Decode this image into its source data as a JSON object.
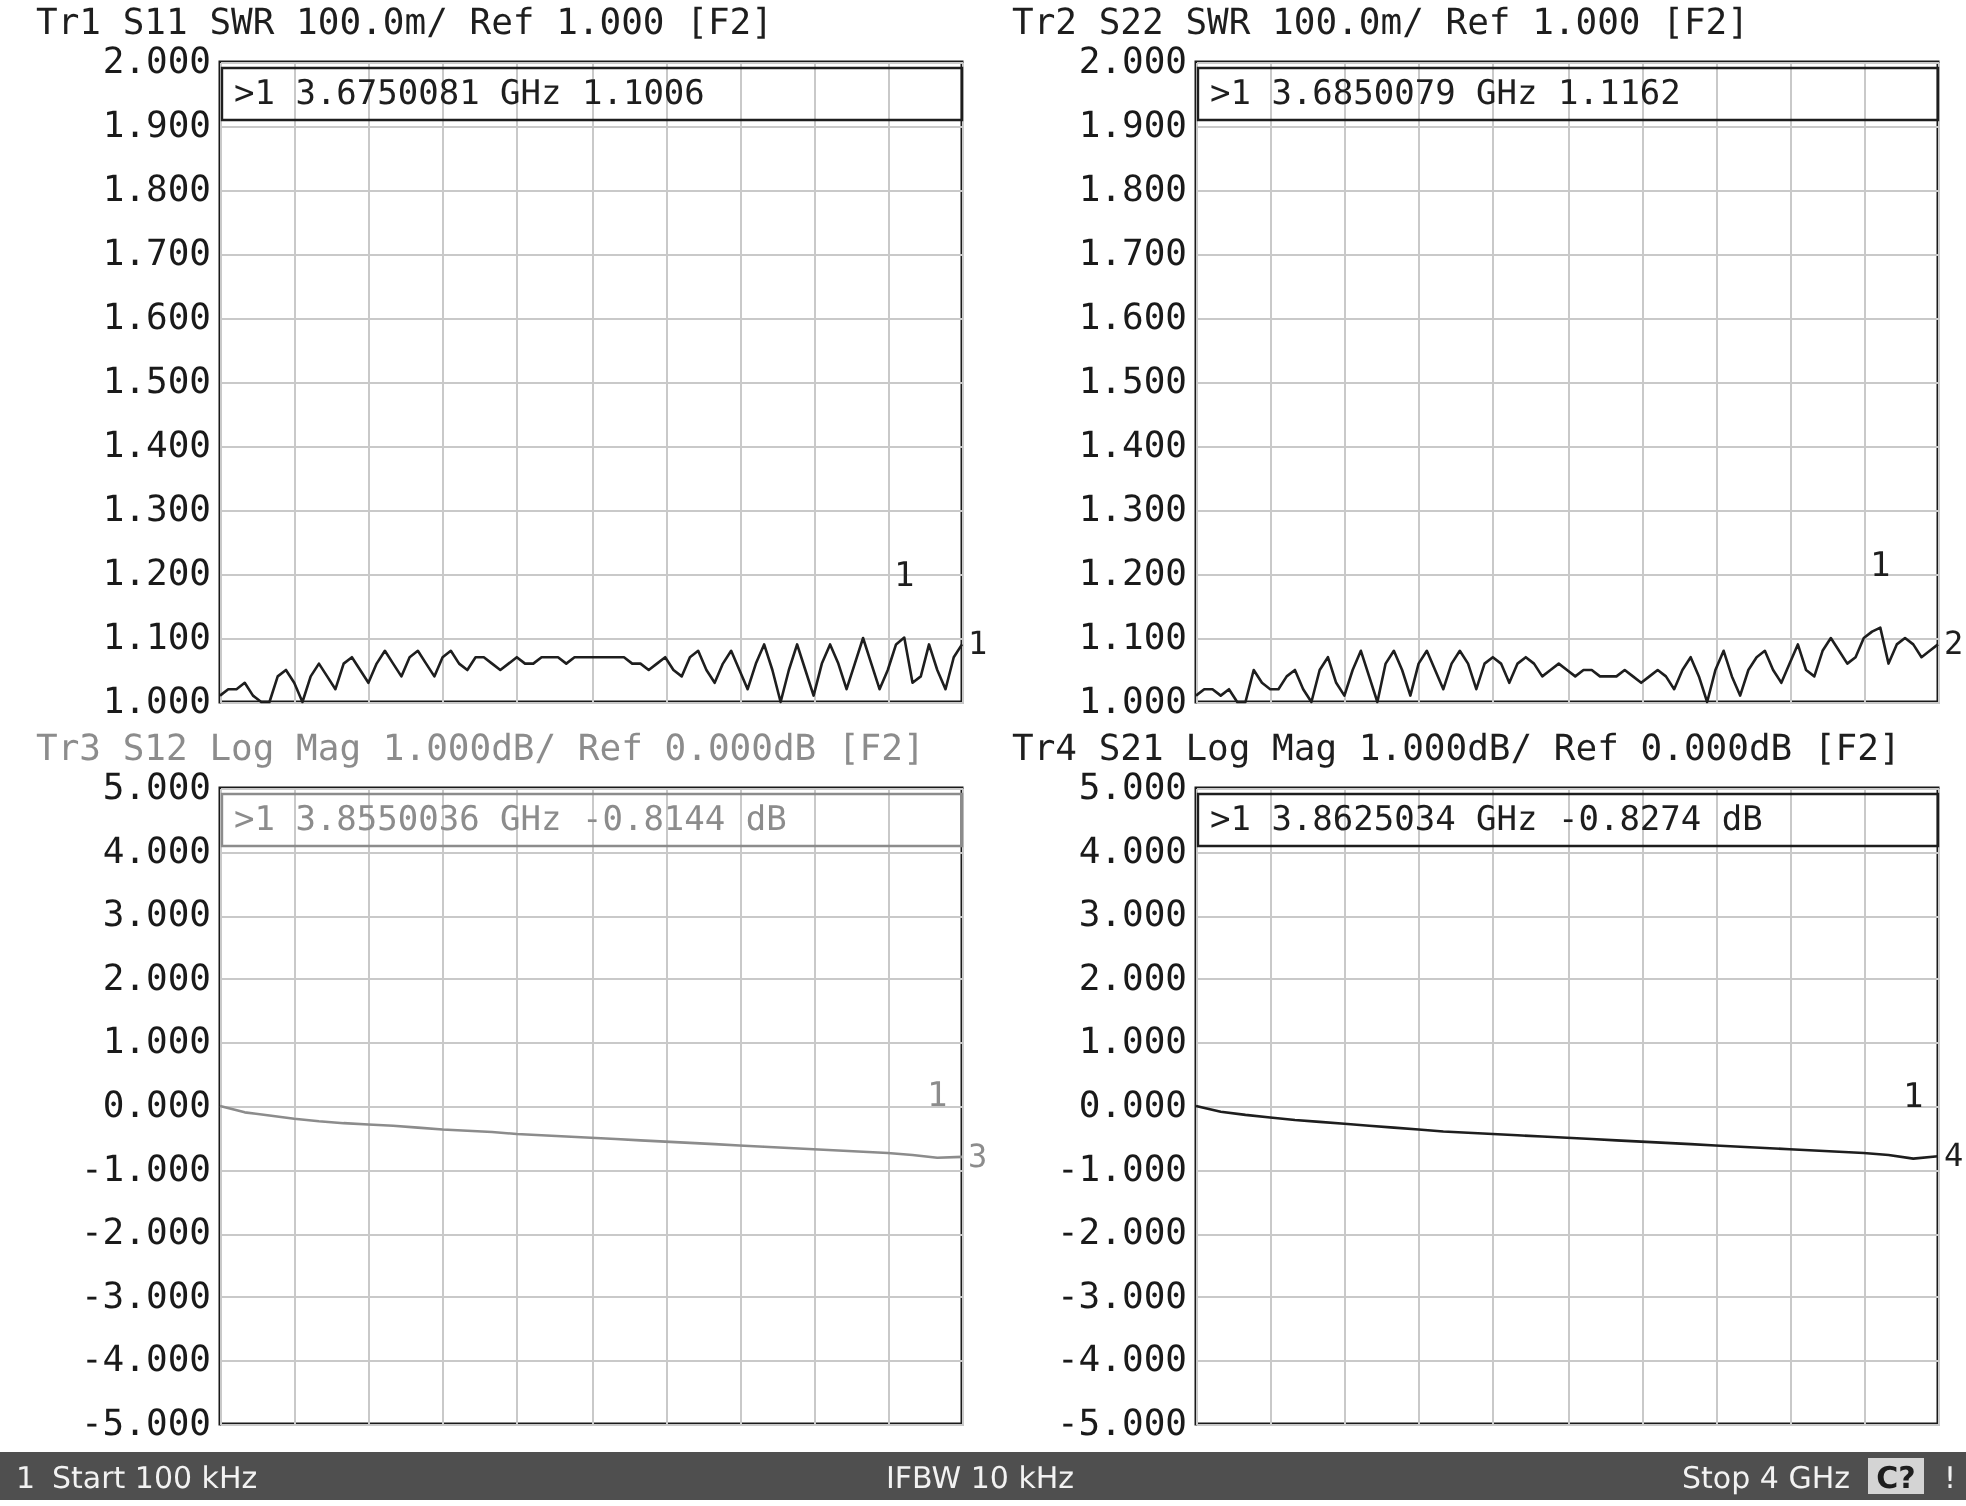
{
  "chart_data": [
    {
      "type": "line",
      "title": "Tr1 S11 SWR 100.0m/ Ref 1.000 [F2]",
      "tick_labels": "y",
      "grid": true,
      "categories": [
        null,
        null,
        null,
        null,
        null,
        null,
        null,
        null,
        null,
        null,
        null,
        null,
        null,
        null,
        null,
        null,
        null,
        null,
        null,
        null,
        null,
        null,
        null,
        null,
        null,
        null,
        null,
        null,
        null,
        null,
        null,
        null,
        null,
        null,
        null,
        null,
        null,
        null,
        null,
        null,
        null,
        null,
        null,
        null,
        null,
        null,
        null,
        null,
        null,
        null,
        null,
        null,
        null,
        null,
        null,
        null,
        null,
        null,
        null,
        null,
        null,
        null,
        null,
        null,
        null,
        null,
        null,
        null,
        null,
        null,
        null,
        null,
        null,
        null,
        null,
        null,
        null,
        null,
        null,
        null,
        null,
        null,
        null,
        null,
        null,
        null,
        null,
        null,
        null,
        null,
        null
      ],
      "series": [
        {
          "name": "1",
          "color": "#1e1e1e",
          "values": [
            1.01,
            1.02,
            1.02,
            1.03,
            1.01,
            1.0,
            1.0,
            1.04,
            1.05,
            1.03,
            1.0,
            1.04,
            1.06,
            1.04,
            1.02,
            1.06,
            1.07,
            1.05,
            1.03,
            1.06,
            1.08,
            1.06,
            1.04,
            1.07,
            1.08,
            1.06,
            1.04,
            1.07,
            1.08,
            1.06,
            1.05,
            1.07,
            1.07,
            1.06,
            1.05,
            1.06,
            1.07,
            1.06,
            1.06,
            1.07,
            1.07,
            1.07,
            1.06,
            1.07,
            1.07,
            1.07,
            1.07,
            1.07,
            1.07,
            1.07,
            1.06,
            1.06,
            1.05,
            1.06,
            1.07,
            1.05,
            1.04,
            1.07,
            1.08,
            1.05,
            1.03,
            1.06,
            1.08,
            1.05,
            1.02,
            1.06,
            1.09,
            1.05,
            1.0,
            1.05,
            1.09,
            1.05,
            1.01,
            1.06,
            1.09,
            1.06,
            1.02,
            1.06,
            1.1,
            1.06,
            1.02,
            1.05,
            1.09,
            1.1006,
            1.03,
            1.04,
            1.09,
            1.05,
            1.02,
            1.07,
            1.09
          ]
        }
      ],
      "ylim": [
        1,
        2
      ],
      "yticks": [
        {
          "value": 1,
          "label": "1.000"
        },
        {
          "value": 1.1,
          "label": "1.100"
        },
        {
          "value": 1.2,
          "label": "1.200"
        },
        {
          "value": 1.3,
          "label": "1.300"
        },
        {
          "value": 1.4,
          "label": "1.400"
        },
        {
          "value": 1.5,
          "label": "1.500"
        },
        {
          "value": 1.6,
          "label": "1.600"
        },
        {
          "value": 1.7,
          "label": "1.700"
        },
        {
          "value": 1.8,
          "label": "1.800"
        },
        {
          "value": 1.9,
          "label": "1.900"
        },
        {
          "value": 2,
          "label": "2.000"
        }
      ],
      "annotations": [
        ">1 3.6750081 GHz 1.1006",
        {
          "text": "1",
          "y": 1.1006
        }
      ]
    },
    {
      "type": "line",
      "title": "Tr2 S22 SWR 100.0m/ Ref 1.000 [F2]",
      "tick_labels": "y",
      "grid": true,
      "categories": [
        null,
        null,
        null,
        null,
        null,
        null,
        null,
        null,
        null,
        null,
        null,
        null,
        null,
        null,
        null,
        null,
        null,
        null,
        null,
        null,
        null,
        null,
        null,
        null,
        null,
        null,
        null,
        null,
        null,
        null,
        null,
        null,
        null,
        null,
        null,
        null,
        null,
        null,
        null,
        null,
        null,
        null,
        null,
        null,
        null,
        null,
        null,
        null,
        null,
        null,
        null,
        null,
        null,
        null,
        null,
        null,
        null,
        null,
        null,
        null,
        null,
        null,
        null,
        null,
        null,
        null,
        null,
        null,
        null,
        null,
        null,
        null,
        null,
        null,
        null,
        null,
        null,
        null,
        null,
        null,
        null,
        null,
        null,
        null,
        null,
        null,
        null,
        null,
        null,
        null,
        null
      ],
      "series": [
        {
          "name": "2",
          "color": "#1e1e1e",
          "values": [
            1.01,
            1.02,
            1.02,
            1.01,
            1.02,
            1.0,
            1.0,
            1.05,
            1.03,
            1.02,
            1.02,
            1.04,
            1.05,
            1.02,
            1.0,
            1.05,
            1.07,
            1.03,
            1.01,
            1.05,
            1.08,
            1.04,
            1.0,
            1.06,
            1.08,
            1.05,
            1.01,
            1.06,
            1.08,
            1.05,
            1.02,
            1.06,
            1.08,
            1.06,
            1.02,
            1.06,
            1.07,
            1.06,
            1.03,
            1.06,
            1.07,
            1.06,
            1.04,
            1.05,
            1.06,
            1.05,
            1.04,
            1.05,
            1.05,
            1.04,
            1.04,
            1.04,
            1.05,
            1.04,
            1.03,
            1.04,
            1.05,
            1.04,
            1.02,
            1.05,
            1.07,
            1.04,
            1.0,
            1.05,
            1.08,
            1.04,
            1.01,
            1.05,
            1.07,
            1.08,
            1.05,
            1.03,
            1.06,
            1.09,
            1.05,
            1.04,
            1.08,
            1.1,
            1.08,
            1.06,
            1.07,
            1.1,
            1.11,
            1.1162,
            1.06,
            1.09,
            1.1,
            1.09,
            1.07,
            1.08,
            1.09
          ]
        }
      ],
      "ylim": [
        1,
        2
      ],
      "yticks": [
        {
          "value": 1,
          "label": "1.000"
        },
        {
          "value": 1.1,
          "label": "1.100"
        },
        {
          "value": 1.2,
          "label": "1.200"
        },
        {
          "value": 1.3,
          "label": "1.300"
        },
        {
          "value": 1.4,
          "label": "1.400"
        },
        {
          "value": 1.5,
          "label": "1.500"
        },
        {
          "value": 1.6,
          "label": "1.600"
        },
        {
          "value": 1.7,
          "label": "1.700"
        },
        {
          "value": 1.8,
          "label": "1.800"
        },
        {
          "value": 1.9,
          "label": "1.900"
        },
        {
          "value": 2,
          "label": "2.000"
        }
      ],
      "annotations": [
        ">1 3.6850079 GHz 1.1162",
        {
          "text": "1",
          "y": 1.1162
        }
      ]
    },
    {
      "type": "line",
      "title": "Tr3 S12 Log Mag 1.000dB/ Ref 0.000dB [F2]",
      "tick_labels": "y",
      "grid": true,
      "categories": [
        null,
        null,
        null,
        null,
        null,
        null,
        null,
        null,
        null,
        null,
        null,
        null,
        null,
        null,
        null,
        null,
        null,
        null,
        null,
        null,
        null,
        null,
        null,
        null,
        null,
        null,
        null,
        null,
        null,
        null,
        null
      ],
      "series": [
        {
          "name": "3",
          "color": "#8c8c8c",
          "values": [
            0.0,
            -0.1,
            -0.15,
            -0.2,
            -0.24,
            -0.27,
            -0.29,
            -0.31,
            -0.34,
            -0.37,
            -0.39,
            -0.41,
            -0.44,
            -0.46,
            -0.48,
            -0.5,
            -0.52,
            -0.54,
            -0.56,
            -0.58,
            -0.6,
            -0.62,
            -0.64,
            -0.66,
            -0.68,
            -0.7,
            -0.72,
            -0.74,
            -0.77,
            -0.8144,
            -0.8
          ]
        }
      ],
      "ylim": [
        -5,
        5
      ],
      "yticks": [
        {
          "value": -5,
          "label": "-5.000"
        },
        {
          "value": -4,
          "label": "-4.000"
        },
        {
          "value": -3,
          "label": "-3.000"
        },
        {
          "value": -2,
          "label": "-2.000"
        },
        {
          "value": -1,
          "label": "-1.000"
        },
        {
          "value": 0,
          "label": "0.000"
        },
        {
          "value": 1,
          "label": "1.000"
        },
        {
          "value": 2,
          "label": "2.000"
        },
        {
          "value": 3,
          "label": "3.000"
        },
        {
          "value": 4,
          "label": "4.000"
        },
        {
          "value": 5,
          "label": "5.000"
        }
      ],
      "annotations": [
        ">1 3.8550036 GHz -0.8144 dB",
        {
          "text": "1",
          "y": -0.8144
        }
      ]
    },
    {
      "type": "line",
      "title": "Tr4 S21 Log Mag 1.000dB/ Ref 0.000dB [F2]",
      "tick_labels": "y",
      "grid": true,
      "categories": [
        null,
        null,
        null,
        null,
        null,
        null,
        null,
        null,
        null,
        null,
        null,
        null,
        null,
        null,
        null,
        null,
        null,
        null,
        null,
        null,
        null,
        null,
        null,
        null,
        null,
        null,
        null,
        null,
        null,
        null,
        null
      ],
      "series": [
        {
          "name": "4",
          "color": "#1e1e1e",
          "values": [
            0.0,
            -0.09,
            -0.14,
            -0.18,
            -0.22,
            -0.25,
            -0.28,
            -0.31,
            -0.34,
            -0.37,
            -0.4,
            -0.42,
            -0.44,
            -0.46,
            -0.48,
            -0.5,
            -0.52,
            -0.54,
            -0.56,
            -0.58,
            -0.6,
            -0.62,
            -0.64,
            -0.66,
            -0.68,
            -0.7,
            -0.72,
            -0.74,
            -0.77,
            -0.8274,
            -0.79
          ]
        }
      ],
      "ylim": [
        -5,
        5
      ],
      "yticks": [
        {
          "value": -5,
          "label": "-5.000"
        },
        {
          "value": -4,
          "label": "-4.000"
        },
        {
          "value": -3,
          "label": "-3.000"
        },
        {
          "value": -2,
          "label": "-2.000"
        },
        {
          "value": -1,
          "label": "-1.000"
        },
        {
          "value": 0,
          "label": "0.000"
        },
        {
          "value": 1,
          "label": "1.000"
        },
        {
          "value": 2,
          "label": "2.000"
        },
        {
          "value": 3,
          "label": "3.000"
        },
        {
          "value": 4,
          "label": "4.000"
        },
        {
          "value": 5,
          "label": "5.000"
        }
      ],
      "annotations": [
        ">1 3.8625034 GHz -0.8274 dB",
        {
          "text": "1",
          "y": -0.8274
        }
      ]
    },
    {
      "type": "other",
      "annotations": [
        "1",
        "Start 100 kHz",
        "IFBW 10 kHz",
        "Stop 4 GHz",
        "C?",
        "!"
      ]
    }
  ]
}
